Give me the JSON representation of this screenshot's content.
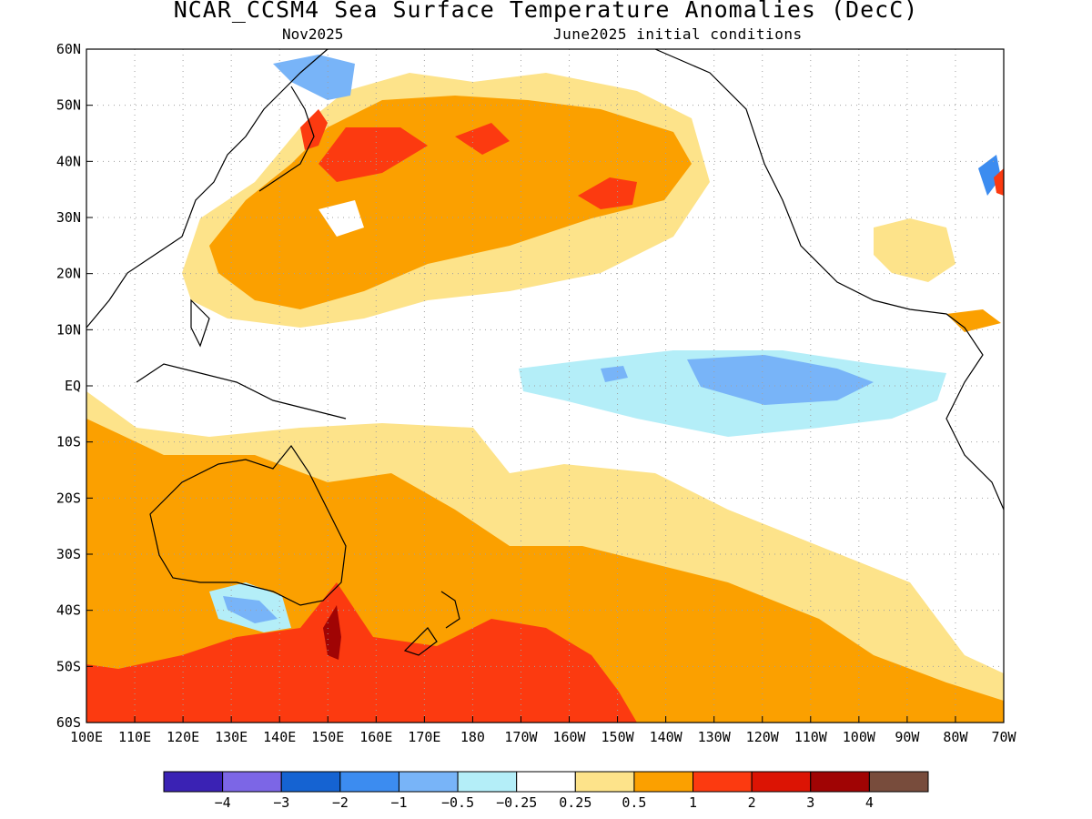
{
  "title": "NCAR_CCSM4 Sea Surface Temperature Anomalies (DecC)",
  "subtitle_left": "Nov2025",
  "subtitle_right": "June2025 initial conditions",
  "lat_labels": [
    "60N",
    "50N",
    "40N",
    "30N",
    "20N",
    "10N",
    "EQ",
    "10S",
    "20S",
    "30S",
    "40S",
    "50S",
    "60S"
  ],
  "lon_labels": [
    "100E",
    "110E",
    "120E",
    "130E",
    "140E",
    "150E",
    "160E",
    "170E",
    "180",
    "170W",
    "160W",
    "150W",
    "140W",
    "130W",
    "120W",
    "110W",
    "100W",
    "90W",
    "80W",
    "70W"
  ],
  "colorbar": {
    "colors": [
      "#3a22b4",
      "#7c66e6",
      "#1563d2",
      "#3c8cf0",
      "#78b4f8",
      "#b4eef8",
      "#ffffff",
      "#fde38a",
      "#fba000",
      "#fc3a10",
      "#dc1404",
      "#a00404",
      "#784c3c"
    ],
    "labels": [
      "−4",
      "−3",
      "−2",
      "−1",
      "−0.5",
      "−0.25",
      "0.25",
      "0.5",
      "1",
      "2",
      "3",
      "4"
    ]
  },
  "colors": {
    "land_outline": "#000000",
    "grid": "#a0a0a0"
  }
}
